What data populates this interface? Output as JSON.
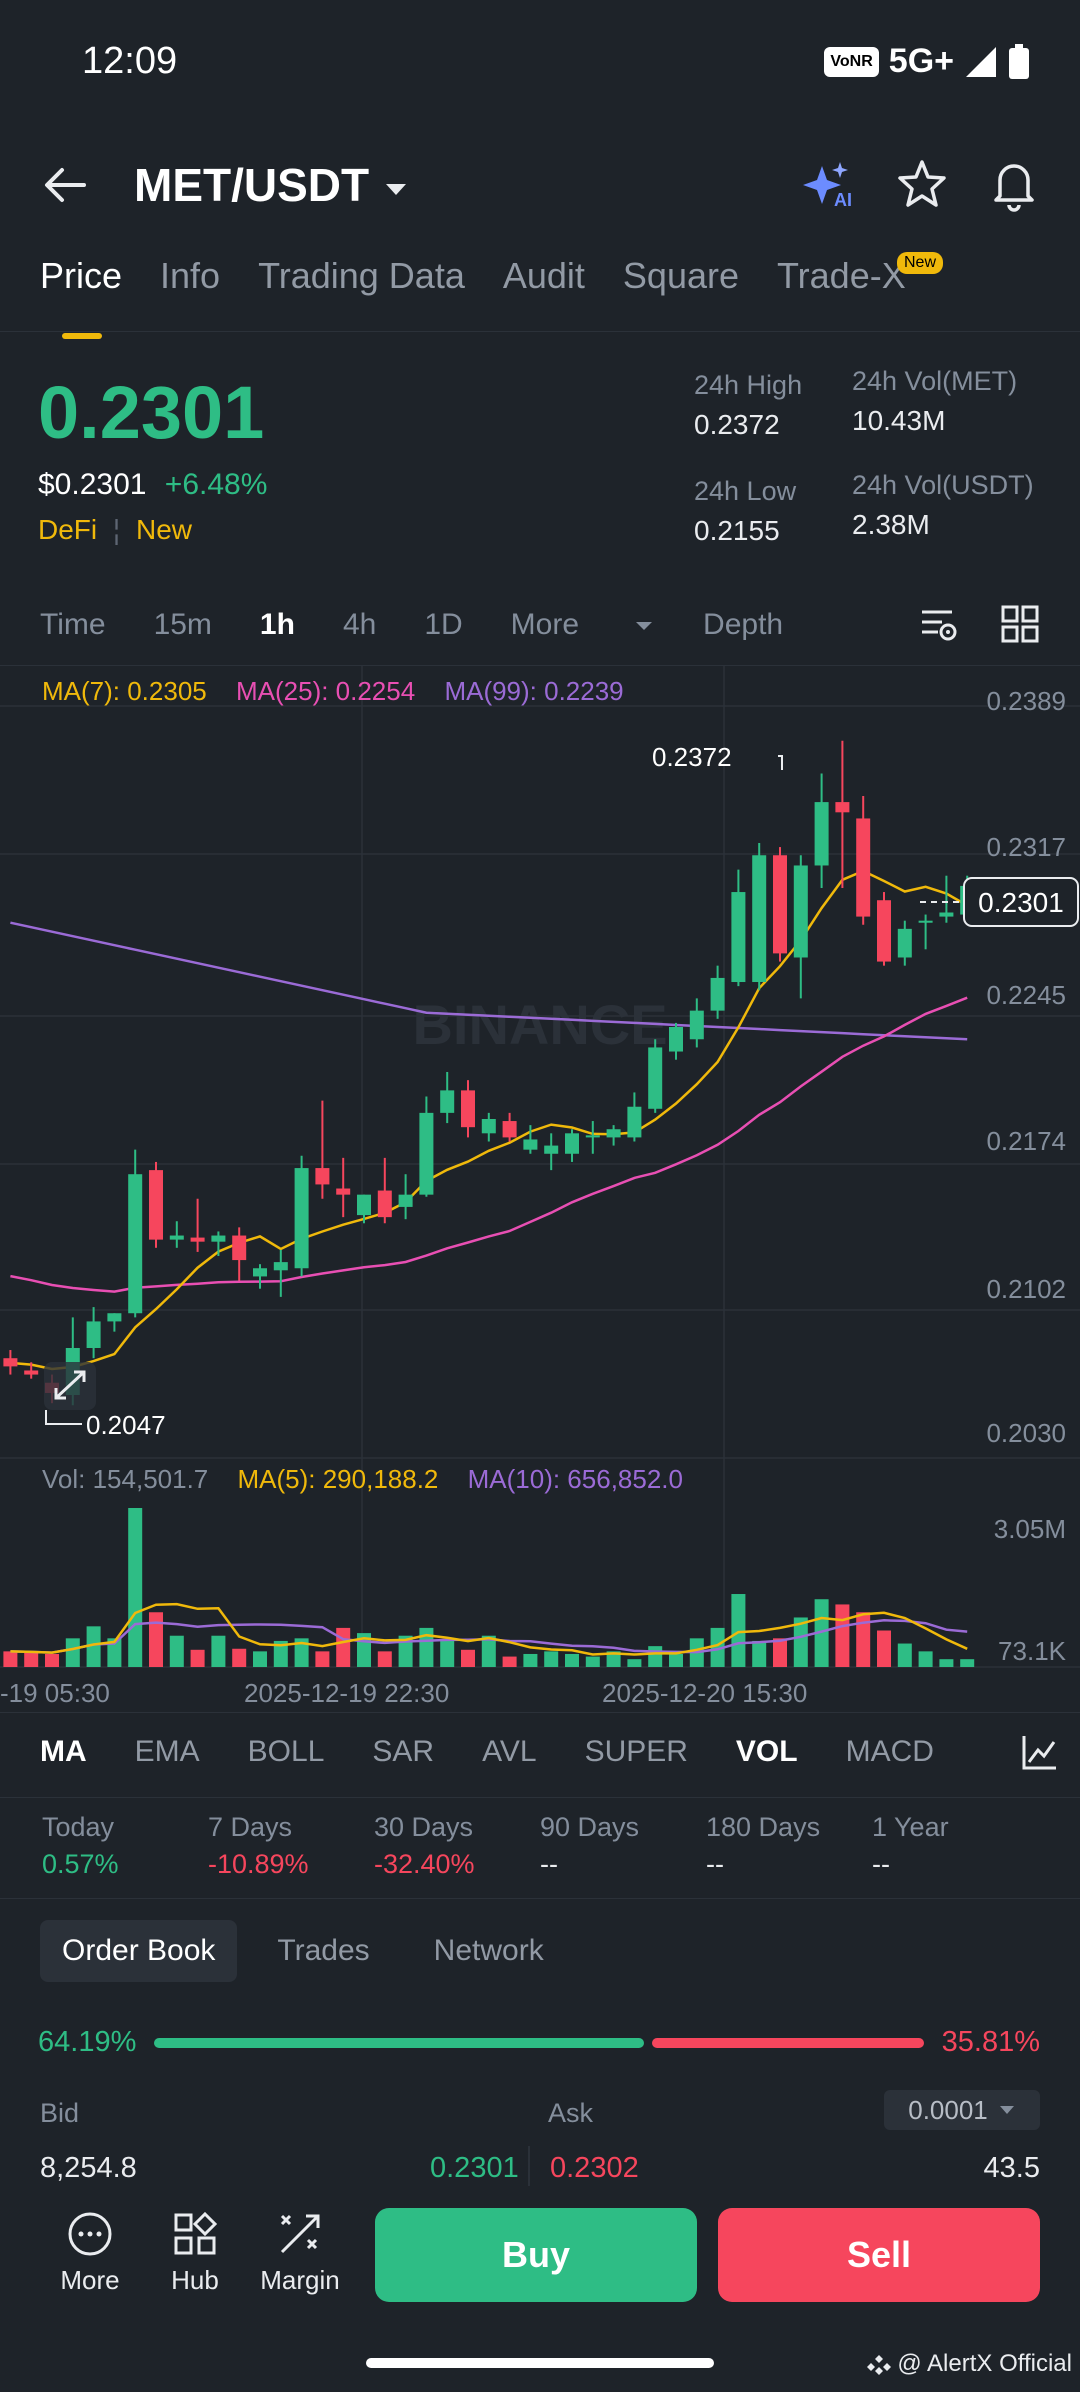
{
  "status_bar": {
    "time": "12:09",
    "volte": "VoNR",
    "network": "5G+"
  },
  "header": {
    "pair": "MET/USDT"
  },
  "tabs": [
    {
      "label": "Price"
    },
    {
      "label": "Info"
    },
    {
      "label": "Trading Data"
    },
    {
      "label": "Audit"
    },
    {
      "label": "Square"
    },
    {
      "label": "Trade-X",
      "badge": "New"
    }
  ],
  "ticker": {
    "last_price": "0.2301",
    "usd_price": "$0.2301",
    "change": "+6.48%",
    "tag1": "DeFi",
    "tag2": "New",
    "high_label": "24h High",
    "high": "0.2372",
    "low_label": "24h Low",
    "low": "0.2155",
    "vol_base_label": "24h Vol(MET)",
    "vol_base": "10.43M",
    "vol_quote_label": "24h Vol(USDT)",
    "vol_quote": "2.38M"
  },
  "timeframes": {
    "items": [
      "Time",
      "15m",
      "1h",
      "4h",
      "1D",
      "More",
      "Depth"
    ],
    "active": "1h"
  },
  "ma_legend": {
    "ma7": "MA(7): 0.2305",
    "ma25": "MA(25): 0.2254",
    "ma99": "MA(99): 0.2239"
  },
  "price_axis": [
    "0.2389",
    "0.2317",
    "0.2245",
    "0.2174",
    "0.2102",
    "0.2030"
  ],
  "current_price_tag": "0.2301",
  "high_marker": "0.2372",
  "low_marker": "0.2047",
  "watermark": "BINANCE",
  "vol_legend": {
    "vol": "Vol: 154,501.7",
    "ma5": "MA(5): 290,188.2",
    "ma10": "MA(10): 656,852.0"
  },
  "vol_axis": [
    "3.05M",
    "73.1K"
  ],
  "time_axis": [
    "-19 05:30",
    "2025-12-19 22:30",
    "2025-12-20 15:30"
  ],
  "indicators": {
    "items": [
      "MA",
      "EMA",
      "BOLL",
      "SAR",
      "AVL",
      "SUPER",
      "VOL",
      "MACD"
    ],
    "active_main": "MA",
    "active_sub": "VOL"
  },
  "performance": [
    {
      "label": "Today",
      "value": "0.57%",
      "dir": "up"
    },
    {
      "label": "7 Days",
      "value": "-10.89%",
      "dir": "down"
    },
    {
      "label": "30 Days",
      "value": "-32.40%",
      "dir": "down"
    },
    {
      "label": "90 Days",
      "value": "--",
      "dir": "none"
    },
    {
      "label": "180 Days",
      "value": "--",
      "dir": "none"
    },
    {
      "label": "1 Year",
      "value": "--",
      "dir": "none"
    }
  ],
  "order_book": {
    "tabs": [
      "Order Book",
      "Trades",
      "Network"
    ],
    "bid_pct": "64.19%",
    "ask_pct": "35.81%",
    "bid_ratio": 0.6419,
    "bid_label": "Bid",
    "ask_label": "Ask",
    "precision": "0.0001",
    "row": {
      "bid_qty": "8,254.8",
      "bid_price": "0.2301",
      "ask_price": "0.2302",
      "ask_qty": "43.5"
    }
  },
  "bottom_nav": {
    "more": "More",
    "hub": "Hub",
    "margin": "Margin",
    "buy": "Buy",
    "sell": "Sell"
  },
  "footer_mark": "@ AlertX Official",
  "colors": {
    "up": "#2ebd85",
    "down": "#f6465d",
    "accent": "#f0b90b",
    "ma7": "#f0b90b",
    "ma25": "#e84fb3",
    "ma99": "#9b6bd6"
  },
  "chart_data": {
    "type": "candlestick",
    "interval": "1h",
    "ylim": [
      0.203,
      0.2389
    ],
    "candles": [
      {
        "o": 0.207,
        "h": 0.2074,
        "l": 0.2062,
        "c": 0.2066
      },
      {
        "o": 0.2064,
        "h": 0.2068,
        "l": 0.206,
        "c": 0.2062
      },
      {
        "o": 0.2058,
        "h": 0.2062,
        "l": 0.2048,
        "c": 0.2053
      },
      {
        "o": 0.2052,
        "h": 0.209,
        "l": 0.2047,
        "c": 0.2075
      },
      {
        "o": 0.2075,
        "h": 0.2095,
        "l": 0.207,
        "c": 0.2088
      },
      {
        "o": 0.2088,
        "h": 0.2092,
        "l": 0.2083,
        "c": 0.2092
      },
      {
        "o": 0.2092,
        "h": 0.2172,
        "l": 0.209,
        "c": 0.216
      },
      {
        "o": 0.2162,
        "h": 0.2166,
        "l": 0.2124,
        "c": 0.2128
      },
      {
        "o": 0.2128,
        "h": 0.2137,
        "l": 0.2124,
        "c": 0.213
      },
      {
        "o": 0.2129,
        "h": 0.2148,
        "l": 0.2122,
        "c": 0.2127
      },
      {
        "o": 0.2127,
        "h": 0.2132,
        "l": 0.212,
        "c": 0.213
      },
      {
        "o": 0.213,
        "h": 0.2134,
        "l": 0.2108,
        "c": 0.2118
      },
      {
        "o": 0.211,
        "h": 0.2116,
        "l": 0.2104,
        "c": 0.2114
      },
      {
        "o": 0.2113,
        "h": 0.2123,
        "l": 0.21,
        "c": 0.2117
      },
      {
        "o": 0.2114,
        "h": 0.2169,
        "l": 0.211,
        "c": 0.2163
      },
      {
        "o": 0.2163,
        "h": 0.2196,
        "l": 0.2148,
        "c": 0.2155
      },
      {
        "o": 0.2153,
        "h": 0.2168,
        "l": 0.2139,
        "c": 0.215
      },
      {
        "o": 0.214,
        "h": 0.215,
        "l": 0.2136,
        "c": 0.215
      },
      {
        "o": 0.2152,
        "h": 0.2168,
        "l": 0.2136,
        "c": 0.2139
      },
      {
        "o": 0.2144,
        "h": 0.216,
        "l": 0.2138,
        "c": 0.215
      },
      {
        "o": 0.215,
        "h": 0.2198,
        "l": 0.2149,
        "c": 0.219
      },
      {
        "o": 0.219,
        "h": 0.221,
        "l": 0.2185,
        "c": 0.2201
      },
      {
        "o": 0.2201,
        "h": 0.2206,
        "l": 0.2178,
        "c": 0.2183
      },
      {
        "o": 0.218,
        "h": 0.219,
        "l": 0.2176,
        "c": 0.2187
      },
      {
        "o": 0.2186,
        "h": 0.219,
        "l": 0.2176,
        "c": 0.2178
      },
      {
        "o": 0.2172,
        "h": 0.2184,
        "l": 0.217,
        "c": 0.2177
      },
      {
        "o": 0.217,
        "h": 0.218,
        "l": 0.2162,
        "c": 0.2174
      },
      {
        "o": 0.217,
        "h": 0.2182,
        "l": 0.2166,
        "c": 0.218
      },
      {
        "o": 0.2178,
        "h": 0.2186,
        "l": 0.217,
        "c": 0.2179
      },
      {
        "o": 0.2178,
        "h": 0.2184,
        "l": 0.2174,
        "c": 0.2182
      },
      {
        "o": 0.2178,
        "h": 0.22,
        "l": 0.2176,
        "c": 0.2193
      },
      {
        "o": 0.2192,
        "h": 0.2226,
        "l": 0.219,
        "c": 0.2222
      },
      {
        "o": 0.222,
        "h": 0.2234,
        "l": 0.2216,
        "c": 0.2232
      },
      {
        "o": 0.2226,
        "h": 0.2246,
        "l": 0.2222,
        "c": 0.224
      },
      {
        "o": 0.224,
        "h": 0.2262,
        "l": 0.2236,
        "c": 0.2256
      },
      {
        "o": 0.2254,
        "h": 0.2309,
        "l": 0.2252,
        "c": 0.2298
      },
      {
        "o": 0.2254,
        "h": 0.2322,
        "l": 0.225,
        "c": 0.2316
      },
      {
        "o": 0.2316,
        "h": 0.232,
        "l": 0.2264,
        "c": 0.2268
      },
      {
        "o": 0.2266,
        "h": 0.2316,
        "l": 0.2246,
        "c": 0.2311
      },
      {
        "o": 0.2311,
        "h": 0.2356,
        "l": 0.23,
        "c": 0.2342
      },
      {
        "o": 0.2342,
        "h": 0.2372,
        "l": 0.23,
        "c": 0.2337
      },
      {
        "o": 0.2334,
        "h": 0.2345,
        "l": 0.2282,
        "c": 0.2286
      },
      {
        "o": 0.2294,
        "h": 0.2298,
        "l": 0.2262,
        "c": 0.2264
      },
      {
        "o": 0.2266,
        "h": 0.2284,
        "l": 0.2262,
        "c": 0.228
      },
      {
        "o": 0.2283,
        "h": 0.2287,
        "l": 0.227,
        "c": 0.2284
      },
      {
        "o": 0.2286,
        "h": 0.2306,
        "l": 0.2283,
        "c": 0.2288
      },
      {
        "o": 0.2287,
        "h": 0.2306,
        "l": 0.2286,
        "c": 0.2301
      }
    ],
    "volume": [
      0.3,
      0.28,
      0.25,
      0.55,
      0.78,
      0.55,
      3.05,
      1.05,
      0.6,
      0.33,
      0.6,
      0.35,
      0.3,
      0.5,
      0.55,
      0.3,
      0.75,
      0.65,
      0.3,
      0.6,
      0.75,
      0.5,
      0.33,
      0.6,
      0.2,
      0.25,
      0.3,
      0.25,
      0.2,
      0.3,
      0.15,
      0.4,
      0.25,
      0.55,
      0.75,
      1.4,
      0.5,
      0.55,
      0.95,
      1.3,
      1.2,
      1.05,
      0.7,
      0.45,
      0.3,
      0.15,
      0.15
    ]
  }
}
